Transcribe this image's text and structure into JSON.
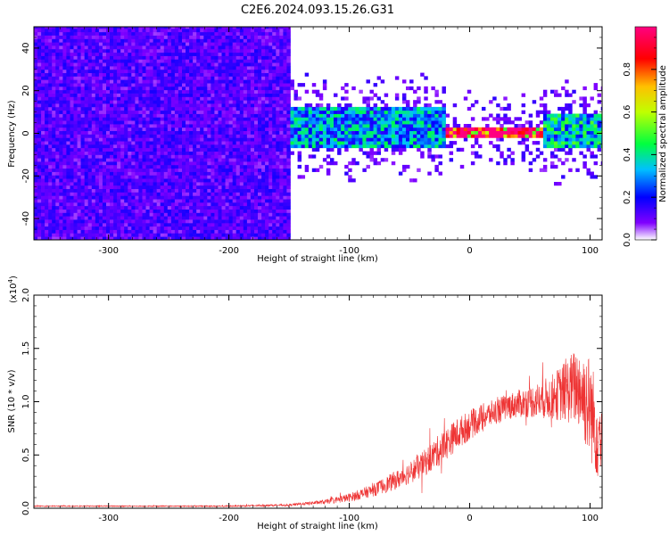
{
  "title": "C2E6.2024.093.15.26.G31",
  "chart_data": [
    {
      "type": "heatmap",
      "xlabel": "Height of straight line (km)",
      "ylabel": "Frequency (Hz)",
      "xlim": [
        -362,
        110
      ],
      "ylim": [
        -50,
        50
      ],
      "x_ticks": [
        -300,
        -200,
        -100,
        0,
        100
      ],
      "x_tick_labels": [
        "-300",
        "-200",
        "-100",
        "0",
        "100"
      ],
      "y_ticks": [
        -40,
        -20,
        0,
        20,
        40
      ],
      "y_tick_labels": [
        "-40",
        "-20",
        "0",
        "20",
        "40"
      ],
      "colorbar": {
        "label": "Normalized spectral amplitude",
        "range": [
          0,
          1
        ],
        "ticks": [
          0.0,
          0.2,
          0.4,
          0.6,
          0.8
        ],
        "tick_labels": [
          "0.0",
          "0.2",
          "0.4",
          "0.6",
          "0.8"
        ],
        "colormap": [
          "#ffffff",
          "#8000ff",
          "#0000ff",
          "#00c0ff",
          "#00ff40",
          "#c0ff00",
          "#ffc000",
          "#ff0000",
          "#ff0080"
        ]
      },
      "regions": [
        {
          "x_range": [
            -362,
            -150
          ],
          "freq_range": [
            -50,
            50
          ],
          "amplitude": 0.12,
          "description_level": "broadband noise"
        },
        {
          "x_range": [
            -150,
            -20
          ],
          "freq_range": [
            -8,
            12
          ],
          "amplitude": 0.3
        },
        {
          "x_range": [
            -20,
            60
          ],
          "freq_range": [
            -2,
            2
          ],
          "amplitude": 0.9
        },
        {
          "x_range": [
            60,
            110
          ],
          "freq_range": [
            -8,
            8
          ],
          "amplitude": 0.35
        }
      ]
    },
    {
      "type": "line",
      "xlabel": "Height of straight line (km)",
      "ylabel": "SNR (10 * v/v)",
      "multiplier_label": "(x10",
      "multiplier_exp": "4",
      "multiplier_close": ")",
      "xlim": [
        -362,
        110
      ],
      "ylim": [
        0,
        2.0
      ],
      "x_ticks": [
        -300,
        -200,
        -100,
        0,
        100
      ],
      "x_tick_labels": [
        "-300",
        "-200",
        "-100",
        "0",
        "100"
      ],
      "y_ticks": [
        0.0,
        0.5,
        1.0,
        1.5,
        2.0
      ],
      "y_tick_labels": [
        "0.0",
        "0.5",
        "1.0",
        "1.5",
        "2.0"
      ],
      "series": [
        {
          "color": "#ee3333",
          "x": [
            -362,
            -300,
            -250,
            -200,
            -150,
            -120,
            -100,
            -80,
            -60,
            -40,
            -25,
            -10,
            0,
            10,
            20,
            30,
            40,
            50,
            60,
            70,
            80,
            90,
            95,
            100,
            105,
            110
          ],
          "y": [
            0.02,
            0.02,
            0.02,
            0.02,
            0.03,
            0.06,
            0.1,
            0.17,
            0.27,
            0.4,
            0.55,
            0.7,
            0.78,
            0.85,
            0.9,
            0.95,
            0.98,
            1.0,
            1.02,
            1.05,
            1.1,
            1.15,
            1.05,
            0.95,
            0.75,
            0.6
          ],
          "noise_amplitude": [
            0.005,
            0.005,
            0.005,
            0.006,
            0.01,
            0.02,
            0.04,
            0.06,
            0.09,
            0.12,
            0.15,
            0.15,
            0.14,
            0.13,
            0.12,
            0.12,
            0.13,
            0.15,
            0.18,
            0.22,
            0.3,
            0.38,
            0.45,
            0.5,
            0.45,
            0.4
          ]
        }
      ]
    }
  ]
}
